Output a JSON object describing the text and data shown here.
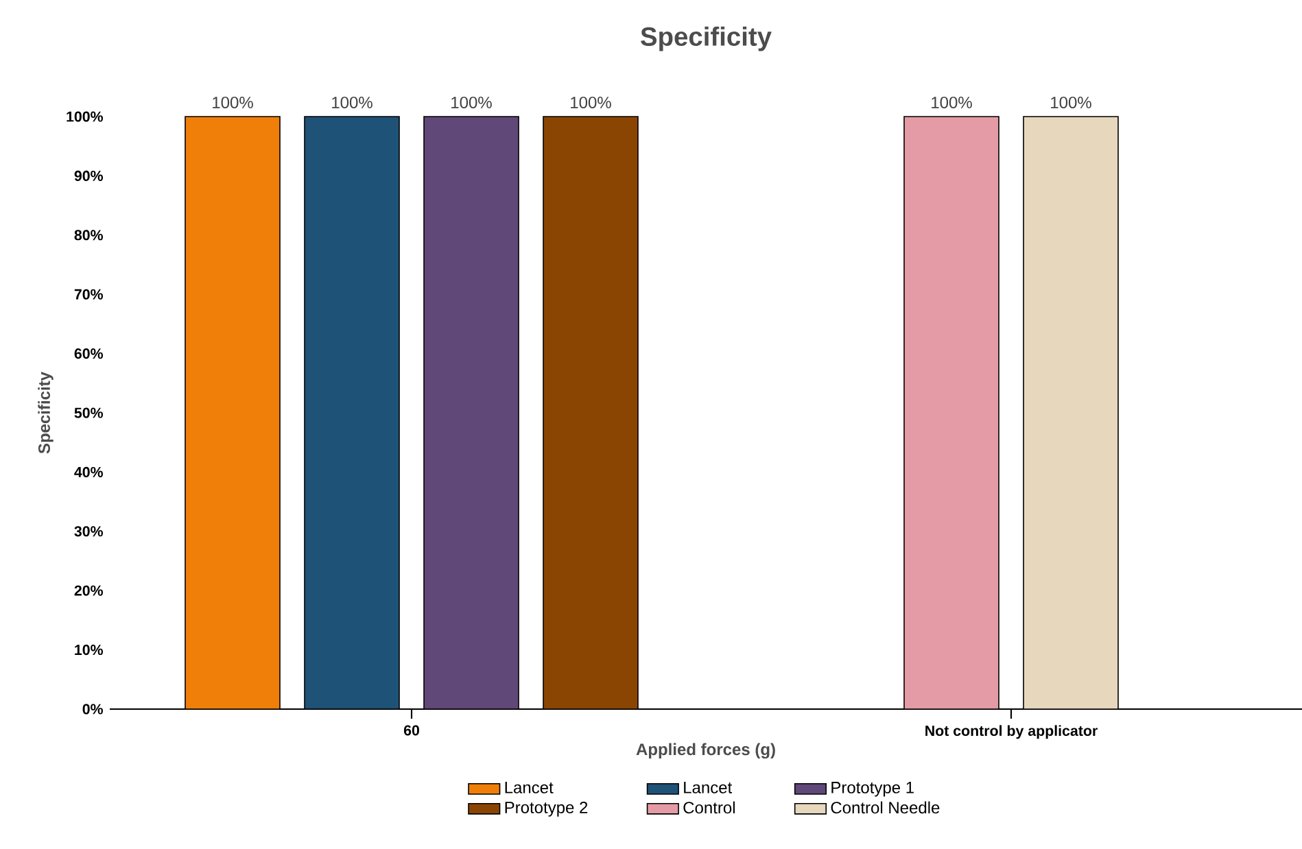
{
  "chart_data": {
    "type": "bar",
    "title": "Specificity",
    "xlabel": "Applied forces (g)",
    "ylabel": "Specificity",
    "categories": [
      "60",
      "Not control by applicator"
    ],
    "series": [
      {
        "name": "Lancet",
        "color": "#f07f09",
        "values": [
          100,
          null
        ],
        "value_labels": [
          "100%",
          null
        ]
      },
      {
        "name": "Lancet",
        "color": "#1f5277",
        "values": [
          100,
          null
        ],
        "value_labels": [
          "100%",
          null
        ]
      },
      {
        "name": "Prototype 1",
        "color": "#604878",
        "values": [
          100,
          null
        ],
        "value_labels": [
          "100%",
          null
        ]
      },
      {
        "name": "Prototype 2",
        "color": "#8b4503",
        "values": [
          100,
          null
        ],
        "value_labels": [
          "100%",
          null
        ]
      },
      {
        "name": "Control",
        "color": "#e59ba5",
        "values": [
          null,
          100
        ],
        "value_labels": [
          null,
          "100%"
        ]
      },
      {
        "name": "Control Needle",
        "color": "#e6d7bd",
        "values": [
          null,
          100
        ],
        "value_labels": [
          null,
          "100%"
        ]
      }
    ],
    "ylim": [
      0,
      100
    ],
    "yticks": [
      {
        "value": 0,
        "label": "0%"
      },
      {
        "value": 10,
        "label": "10%"
      },
      {
        "value": 20,
        "label": "20%"
      },
      {
        "value": 30,
        "label": "30%"
      },
      {
        "value": 40,
        "label": "40%"
      },
      {
        "value": 50,
        "label": "50%"
      },
      {
        "value": 60,
        "label": "60%"
      },
      {
        "value": 70,
        "label": "70%"
      },
      {
        "value": 80,
        "label": "80%"
      },
      {
        "value": 90,
        "label": "90%"
      },
      {
        "value": 100,
        "label": "100%"
      }
    ],
    "grid": false,
    "legend": "bottom"
  }
}
